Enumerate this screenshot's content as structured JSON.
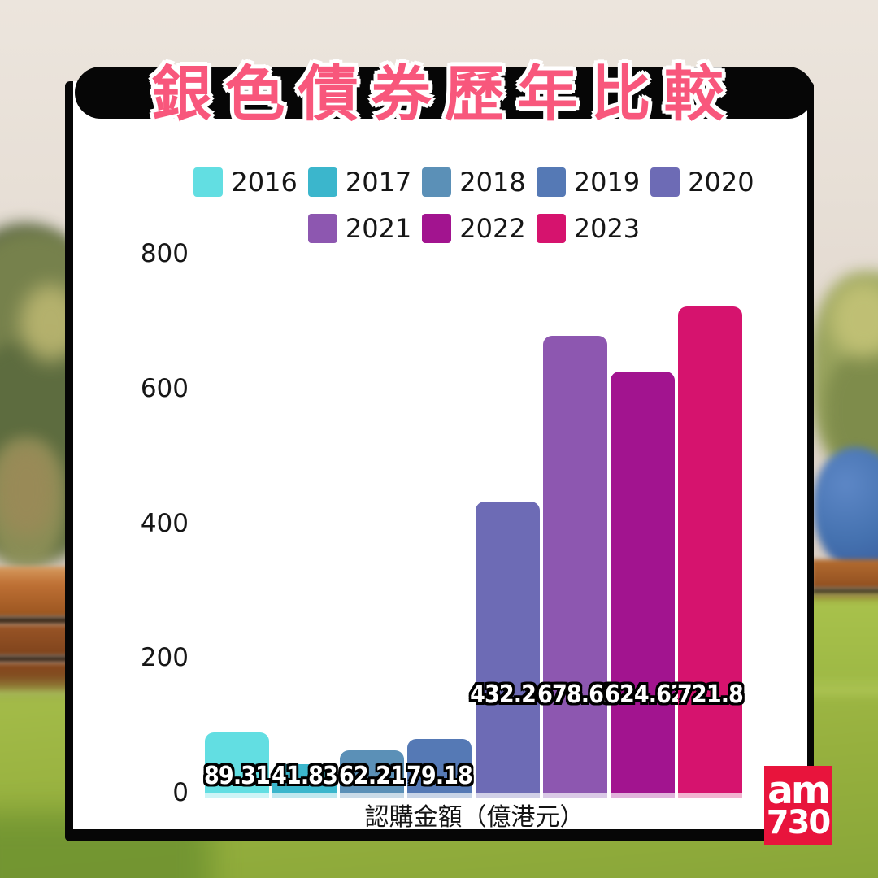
{
  "title": "銀色債券歷年比較",
  "chart_data": {
    "type": "bar",
    "title": "銀色債券歷年比較",
    "xlabel": "認購金額（億港元）",
    "categories": [
      "2016",
      "2017",
      "2018",
      "2019",
      "2020",
      "2021",
      "2022",
      "2023"
    ],
    "values": [
      89.31,
      41.83,
      62.21,
      79.18,
      432.24,
      678.63,
      624.62,
      721.8
    ],
    "colors": [
      "#62DEE2",
      "#3BB6CC",
      "#5B90B7",
      "#5579B5",
      "#6D6BB5",
      "#8D57B0",
      "#A2148F",
      "#D6136E"
    ],
    "ylim": [
      0,
      800
    ],
    "yticks": [
      0,
      200,
      400,
      600,
      800
    ],
    "grid": false,
    "legend_position": "top",
    "legend_rows": [
      5,
      3
    ],
    "value_label_style": "white-with-black-outline"
  },
  "logo": {
    "line1": "am",
    "line2": "730",
    "color": "#E8143C"
  },
  "colors": {
    "title_pink": "#F8577C",
    "banner_black": "#060606",
    "card_white": "#FFFFFF",
    "tick_text": "#161616"
  }
}
